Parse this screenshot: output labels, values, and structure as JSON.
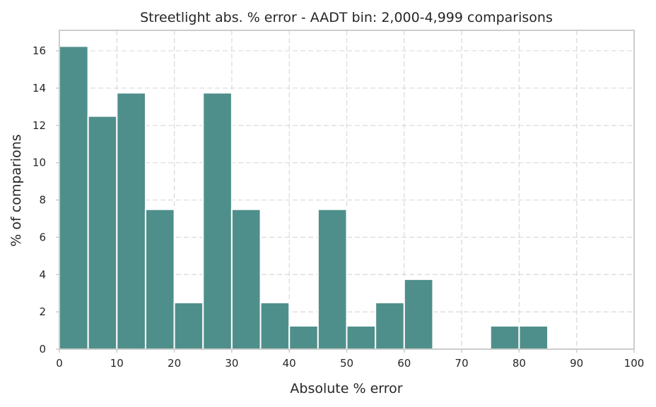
{
  "chart_data": {
    "type": "bar",
    "title": "Streetlight abs. % error - AADT bin: 2,000-4,999 comparisons",
    "xlabel": "Absolute % error",
    "ylabel": "% of comparions",
    "xlim": [
      0,
      100
    ],
    "ylim": [
      0,
      17.1
    ],
    "xticks": [
      0,
      10,
      20,
      30,
      40,
      50,
      60,
      70,
      80,
      90,
      100
    ],
    "yticks": [
      0,
      2,
      4,
      6,
      8,
      10,
      12,
      14,
      16
    ],
    "grid": true,
    "bin_width": 5,
    "bin_starts": [
      0,
      5,
      10,
      15,
      20,
      25,
      30,
      35,
      40,
      45,
      50,
      55,
      60,
      65,
      70,
      75,
      80,
      85,
      90,
      95
    ],
    "values": [
      16.25,
      12.5,
      13.75,
      7.5,
      2.5,
      13.75,
      7.5,
      2.5,
      1.25,
      7.5,
      1.25,
      2.5,
      3.75,
      0,
      0,
      1.25,
      1.25,
      0,
      0,
      0
    ],
    "bar_color": "#4f8f8b"
  }
}
